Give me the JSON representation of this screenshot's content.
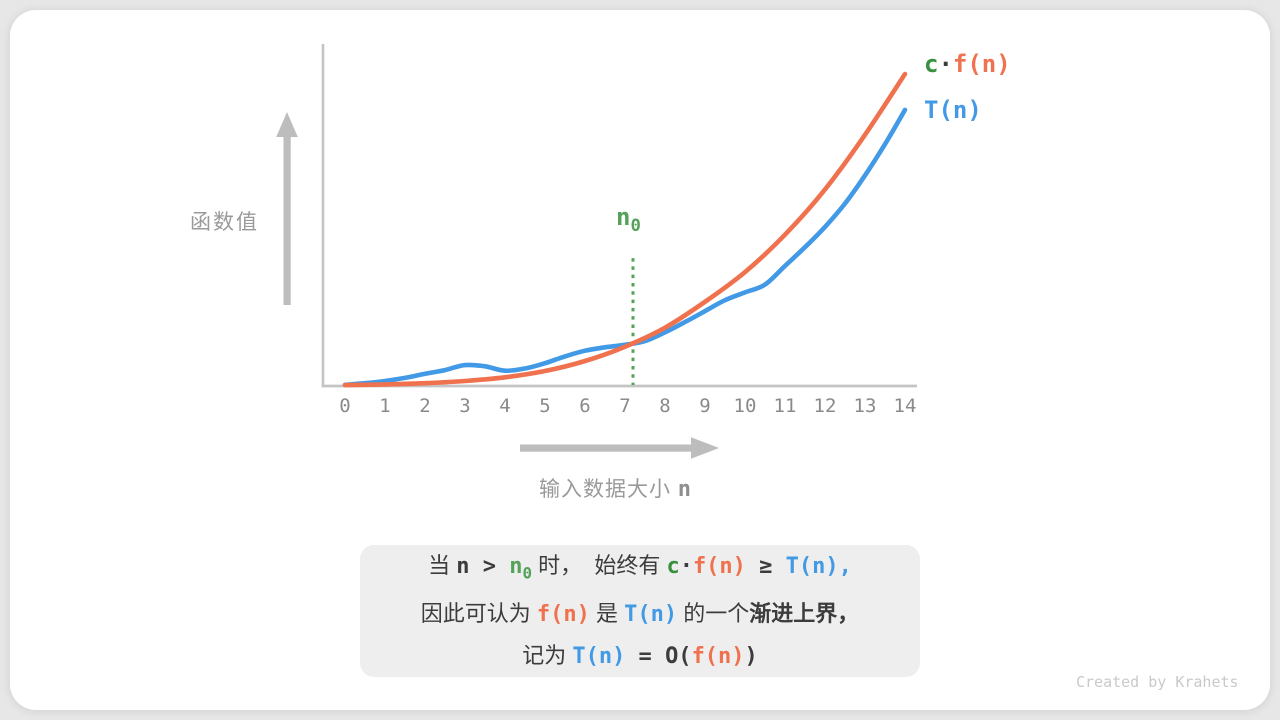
{
  "page": {
    "credit": "Created by Krahets"
  },
  "colors": {
    "orange": "#F0714E",
    "blue": "#4299E6",
    "green": "#54A159",
    "green_dark": "#38913F",
    "dark": "#3C3C3C",
    "axis": "#C4C4C4",
    "arrow": "#BDBDBD",
    "tick": "#8A8A8A",
    "label": "#9A9A9A",
    "note_bg": "#EEEEEE"
  },
  "chart": {
    "y_axis_label": "函数值",
    "x_axis_label": "输入数据大小",
    "x_axis_label_n": "n",
    "n0_label_base": "n",
    "n0_label_sub": "0",
    "legend": {
      "c": "c",
      "dot": "·",
      "fn": "f(n)",
      "tn": "T(n)"
    },
    "x_tick_labels": [
      "0",
      "1",
      "2",
      "3",
      "4",
      "5",
      "6",
      "7",
      "8",
      "9",
      "10",
      "11",
      "12",
      "13",
      "14"
    ]
  },
  "chart_data": {
    "type": "line",
    "title": "",
    "xlabel": "输入数据大小 n",
    "ylabel": "函数值",
    "x_range": [
      0,
      14
    ],
    "y_range": [
      0,
      100
    ],
    "grid": false,
    "legend_position": "top-right",
    "n0": 7.2,
    "n0_line_top_value": 41,
    "series": [
      {
        "name": "c·f(n)",
        "key": "cfn",
        "color_key": "orange",
        "x": [
          0,
          1,
          2,
          3,
          4,
          5,
          6,
          7,
          8,
          9,
          10,
          11,
          12,
          13,
          14
        ],
        "y": [
          0.3,
          0.5,
          0.9,
          1.6,
          2.8,
          4.8,
          8.0,
          12.6,
          18.7,
          27.0,
          36.5,
          48.5,
          63.0,
          80.5,
          100
        ]
      },
      {
        "name": "T(n)",
        "key": "tn",
        "color_key": "blue",
        "x": [
          0,
          0.5,
          1,
          1.5,
          2,
          2.5,
          3,
          3.5,
          4,
          4.5,
          5,
          5.5,
          6,
          6.5,
          7,
          7.5,
          8,
          8.5,
          9,
          9.5,
          10,
          10.5,
          11,
          11.5,
          12,
          12.5,
          13,
          13.5,
          14
        ],
        "y": [
          0.4,
          0.9,
          1.6,
          2.6,
          3.9,
          5.1,
          6.7,
          6.3,
          4.9,
          5.6,
          7.3,
          9.5,
          11.3,
          12.4,
          13.2,
          14.4,
          17.2,
          20.5,
          24.0,
          27.5,
          30.0,
          32.5,
          38.5,
          44.5,
          51.0,
          58.5,
          67.5,
          77.5,
          88.5
        ]
      }
    ]
  },
  "note": {
    "l1": {
      "a": "当 ",
      "n": "n",
      "gt": " > ",
      "n0": "n",
      "n0sub": "0",
      "b": " 时，  始终有 ",
      "c": "c",
      "dot": "·",
      "fn": "f(n)",
      "ge": " ≥ ",
      "tn": "T(n),"
    },
    "l2": {
      "a": "因此可认为 ",
      "fn": "f(n)",
      "b": " 是 ",
      "tn": "T(n)",
      "c": " 的一个",
      "bold": "渐进上界，"
    },
    "l3": {
      "a": "记为 ",
      "tn": "T(n)",
      "eq": " = ",
      "o": "O(",
      "fn": "f(n)",
      "close": ")"
    }
  }
}
